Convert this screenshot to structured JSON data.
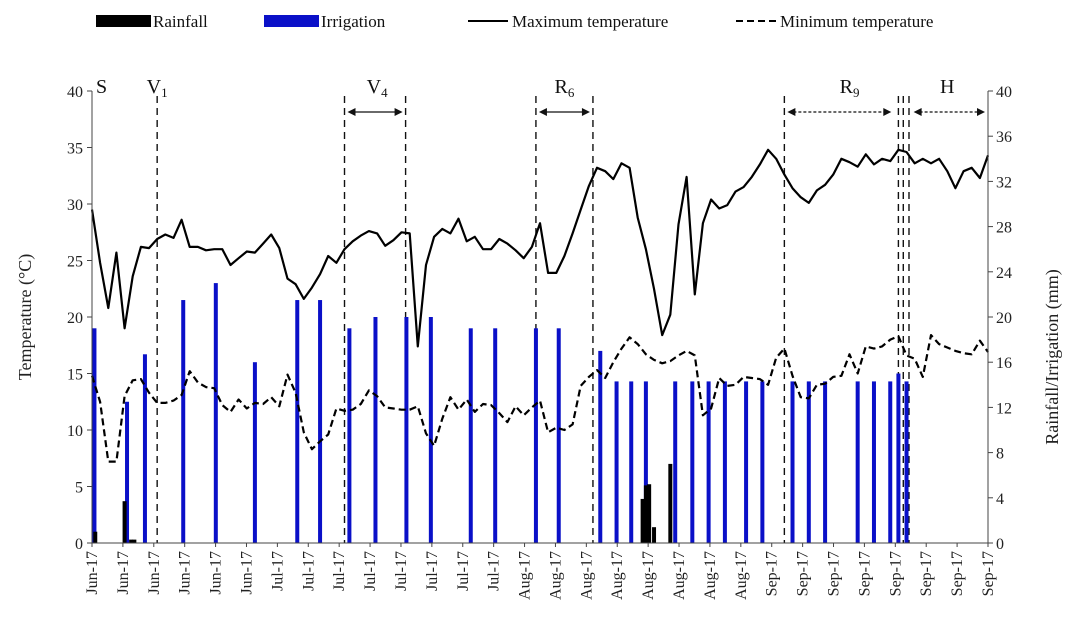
{
  "chart_data": {
    "type": "bar+line",
    "legend": {
      "position": "top",
      "entries": [
        {
          "label": "Rainfall",
          "kind": "bar",
          "color": "#000000"
        },
        {
          "label": "Irrigation",
          "kind": "bar",
          "color": "#0a10c8"
        },
        {
          "label": "Maximum temperature",
          "kind": "line",
          "style": "solid",
          "color": "#000000"
        },
        {
          "label": "Minimum temperature",
          "kind": "line",
          "style": "dashed",
          "color": "#000000"
        }
      ]
    },
    "y_left": {
      "label": "Temperature (°C)",
      "min": 0,
      "max": 40,
      "ticks": [
        "0",
        "5",
        "10",
        "15",
        "20",
        "25",
        "30",
        "35",
        "40"
      ]
    },
    "y_right": {
      "label": "Rainfall/Irrigation (mm)",
      "min": 0,
      "max": 40,
      "ticks": [
        "0",
        "4",
        "8",
        "12",
        "16",
        "20",
        "24",
        "28",
        "32",
        "36",
        "40"
      ]
    },
    "x_axis": {
      "min": 0,
      "max": 110,
      "tick_labels": [
        "Jun-17",
        "Jun-17",
        "Jun-17",
        "Jun-17",
        "Jun-17",
        "Jun-17",
        "Jul-17",
        "Jul-17",
        "Jul-17",
        "Jul-17",
        "Jul-17",
        "Jul-17",
        "Jul-17",
        "Jul-17",
        "Aug-17",
        "Aug-17",
        "Aug-17",
        "Aug-17",
        "Aug-17",
        "Aug-17",
        "Aug-17",
        "Aug-17",
        "Sep-17",
        "Sep-17",
        "Sep-17",
        "Sep-17",
        "Sep-17",
        "Sep-17",
        "Sep-17",
        "Sep-17"
      ]
    },
    "stages": [
      {
        "label": "S",
        "sub": "",
        "x": 0,
        "lines": [],
        "arrow": null
      },
      {
        "label": "V",
        "sub": "1",
        "x": 8,
        "lines": [
          8
        ],
        "arrow": null
      },
      {
        "label": "V",
        "sub": "4",
        "x": 35,
        "lines": [
          31,
          38.5
        ],
        "arrow": [
          31,
          38.5
        ]
      },
      {
        "label": "R",
        "sub": "6",
        "x": 58,
        "lines": [
          54.5,
          61.5
        ],
        "arrow": [
          54.5,
          61.5
        ]
      },
      {
        "label": "R",
        "sub": "9",
        "x": 93,
        "lines": [
          85,
          99
        ],
        "arrow": [
          85,
          98.5
        ]
      },
      {
        "label": "H",
        "sub": "",
        "x": 105,
        "lines": [
          99.6,
          100.3
        ],
        "arrow": [
          100.5,
          110
        ]
      }
    ],
    "rainfall": [
      {
        "x": 0.4,
        "mm": 1.0
      },
      {
        "x": 4.0,
        "mm": 3.7
      },
      {
        "x": 4.8,
        "mm": 0.3
      },
      {
        "x": 5.2,
        "mm": 0.3
      },
      {
        "x": 67.6,
        "mm": 3.9
      },
      {
        "x": 68.0,
        "mm": 5.1
      },
      {
        "x": 68.4,
        "mm": 5.2
      },
      {
        "x": 69.0,
        "mm": 1.4
      },
      {
        "x": 71.0,
        "mm": 7.0
      }
    ],
    "irrigation": [
      {
        "x": 0.3,
        "mm": 19
      },
      {
        "x": 4.3,
        "mm": 12.5
      },
      {
        "x": 6.5,
        "mm": 16.7
      },
      {
        "x": 11.2,
        "mm": 21.5
      },
      {
        "x": 15.2,
        "mm": 23
      },
      {
        "x": 20.0,
        "mm": 16
      },
      {
        "x": 25.2,
        "mm": 21.5
      },
      {
        "x": 28.0,
        "mm": 21.5
      },
      {
        "x": 31.6,
        "mm": 19
      },
      {
        "x": 34.8,
        "mm": 20
      },
      {
        "x": 38.6,
        "mm": 20
      },
      {
        "x": 41.6,
        "mm": 20
      },
      {
        "x": 46.5,
        "mm": 19
      },
      {
        "x": 49.5,
        "mm": 19
      },
      {
        "x": 54.5,
        "mm": 19
      },
      {
        "x": 57.3,
        "mm": 19
      },
      {
        "x": 62.4,
        "mm": 17
      },
      {
        "x": 64.4,
        "mm": 14.3
      },
      {
        "x": 66.2,
        "mm": 14.3
      },
      {
        "x": 68.0,
        "mm": 14.3
      },
      {
        "x": 71.6,
        "mm": 14.3
      },
      {
        "x": 73.7,
        "mm": 14.3
      },
      {
        "x": 75.7,
        "mm": 14.3
      },
      {
        "x": 77.7,
        "mm": 14.3
      },
      {
        "x": 80.3,
        "mm": 14.3
      },
      {
        "x": 82.3,
        "mm": 14.3
      },
      {
        "x": 86.0,
        "mm": 14.3
      },
      {
        "x": 88.0,
        "mm": 14.3
      },
      {
        "x": 90.0,
        "mm": 14.3
      },
      {
        "x": 94.0,
        "mm": 14.3
      },
      {
        "x": 96.0,
        "mm": 14.3
      },
      {
        "x": 98.0,
        "mm": 14.3
      },
      {
        "x": 99.0,
        "mm": 15.0
      },
      {
        "x": 100.0,
        "mm": 14.3
      }
    ],
    "max_temperature": [
      [
        0,
        29.5
      ],
      [
        1,
        24.8
      ],
      [
        2,
        20.8
      ],
      [
        3,
        25.7
      ],
      [
        4,
        19.0
      ],
      [
        5,
        23.6
      ],
      [
        6,
        26.2
      ],
      [
        7,
        26.1
      ],
      [
        8,
        26.9
      ],
      [
        9,
        27.3
      ],
      [
        10,
        27.0
      ],
      [
        11,
        28.6
      ],
      [
        12,
        26.2
      ],
      [
        13,
        26.2
      ],
      [
        14,
        25.9
      ],
      [
        15,
        26.0
      ],
      [
        16,
        26.0
      ],
      [
        17,
        24.6
      ],
      [
        18,
        25.2
      ],
      [
        19,
        25.8
      ],
      [
        20,
        25.7
      ],
      [
        21,
        26.5
      ],
      [
        22,
        27.3
      ],
      [
        23,
        26.1
      ],
      [
        24,
        23.4
      ],
      [
        25,
        22.9
      ],
      [
        26,
        21.6
      ],
      [
        27,
        22.6
      ],
      [
        28,
        23.8
      ],
      [
        29,
        25.4
      ],
      [
        30,
        24.8
      ],
      [
        31,
        26.0
      ],
      [
        32,
        26.7
      ],
      [
        33,
        27.2
      ],
      [
        34,
        27.6
      ],
      [
        35,
        27.4
      ],
      [
        36,
        26.3
      ],
      [
        37,
        26.8
      ],
      [
        38,
        27.5
      ],
      [
        39,
        27.4
      ],
      [
        40,
        17.4
      ],
      [
        41,
        24.6
      ],
      [
        42,
        27.1
      ],
      [
        43,
        27.8
      ],
      [
        44,
        27.4
      ],
      [
        45,
        28.7
      ],
      [
        46,
        26.7
      ],
      [
        47,
        27.1
      ],
      [
        48,
        26.0
      ],
      [
        49,
        26.0
      ],
      [
        50,
        26.9
      ],
      [
        51,
        26.5
      ],
      [
        52,
        25.9
      ],
      [
        53,
        25.2
      ],
      [
        54,
        26.2
      ],
      [
        55,
        28.3
      ],
      [
        56,
        23.9
      ],
      [
        57,
        23.9
      ],
      [
        58,
        25.4
      ],
      [
        59,
        27.4
      ],
      [
        60,
        29.5
      ],
      [
        61,
        31.6
      ],
      [
        62,
        33.2
      ],
      [
        63,
        32.9
      ],
      [
        64,
        32.2
      ],
      [
        65,
        33.6
      ],
      [
        66,
        33.2
      ],
      [
        67,
        28.8
      ],
      [
        68,
        26.0
      ],
      [
        69,
        22.5
      ],
      [
        70,
        18.4
      ],
      [
        71,
        20.2
      ],
      [
        72,
        28.2
      ],
      [
        73,
        32.4
      ],
      [
        74,
        22.0
      ],
      [
        75,
        28.3
      ],
      [
        76,
        30.4
      ],
      [
        77,
        29.6
      ],
      [
        78,
        29.9
      ],
      [
        79,
        31.1
      ],
      [
        80,
        31.5
      ],
      [
        81,
        32.4
      ],
      [
        82,
        33.5
      ],
      [
        83,
        34.8
      ],
      [
        84,
        34.0
      ],
      [
        85,
        32.6
      ],
      [
        86,
        31.4
      ],
      [
        87,
        30.6
      ],
      [
        88,
        30.1
      ],
      [
        89,
        31.2
      ],
      [
        90,
        31.7
      ],
      [
        91,
        32.6
      ],
      [
        92,
        34.0
      ],
      [
        93,
        33.7
      ],
      [
        94,
        33.3
      ],
      [
        95,
        34.4
      ],
      [
        96,
        33.5
      ],
      [
        97,
        34.0
      ],
      [
        98,
        33.8
      ],
      [
        99,
        34.8
      ],
      [
        100,
        34.6
      ],
      [
        101,
        33.6
      ],
      [
        102,
        34.0
      ],
      [
        103,
        33.6
      ],
      [
        104,
        34.0
      ],
      [
        105,
        32.9
      ],
      [
        106,
        31.4
      ],
      [
        107,
        32.9
      ],
      [
        108,
        33.2
      ],
      [
        109,
        32.3
      ],
      [
        110,
        34.3
      ]
    ],
    "min_temperature": [
      [
        0,
        14.8
      ],
      [
        1,
        12.5
      ],
      [
        2,
        7.2
      ],
      [
        3,
        7.2
      ],
      [
        4,
        13.0
      ],
      [
        5,
        14.4
      ],
      [
        6,
        14.5
      ],
      [
        7,
        13.3
      ],
      [
        8,
        12.4
      ],
      [
        9,
        12.4
      ],
      [
        10,
        12.6
      ],
      [
        11,
        13.1
      ],
      [
        12,
        15.2
      ],
      [
        13,
        14.2
      ],
      [
        14,
        13.8
      ],
      [
        15,
        13.7
      ],
      [
        16,
        12.2
      ],
      [
        17,
        11.6
      ],
      [
        18,
        12.7
      ],
      [
        19,
        11.9
      ],
      [
        20,
        12.4
      ],
      [
        21,
        12.3
      ],
      [
        22,
        12.9
      ],
      [
        23,
        12.1
      ],
      [
        24,
        14.9
      ],
      [
        25,
        13.3
      ],
      [
        26,
        9.8
      ],
      [
        27,
        8.3
      ],
      [
        28,
        9.0
      ],
      [
        29,
        9.6
      ],
      [
        30,
        11.9
      ],
      [
        31,
        11.7
      ],
      [
        32,
        11.8
      ],
      [
        33,
        12.3
      ],
      [
        34,
        13.5
      ],
      [
        35,
        13.0
      ],
      [
        36,
        12.0
      ],
      [
        37,
        11.9
      ],
      [
        38,
        11.8
      ],
      [
        39,
        11.8
      ],
      [
        40,
        12.1
      ],
      [
        41,
        9.7
      ],
      [
        42,
        8.6
      ],
      [
        43,
        11.0
      ],
      [
        44,
        12.9
      ],
      [
        45,
        11.8
      ],
      [
        46,
        12.7
      ],
      [
        47,
        11.6
      ],
      [
        48,
        12.3
      ],
      [
        49,
        12.2
      ],
      [
        50,
        11.5
      ],
      [
        51,
        10.7
      ],
      [
        52,
        12.1
      ],
      [
        53,
        11.3
      ],
      [
        54,
        12.0
      ],
      [
        55,
        12.6
      ],
      [
        56,
        9.8
      ],
      [
        57,
        10.2
      ],
      [
        58,
        10.0
      ],
      [
        59,
        10.5
      ],
      [
        60,
        13.9
      ],
      [
        61,
        14.7
      ],
      [
        62,
        15.3
      ],
      [
        63,
        14.6
      ],
      [
        64,
        16.0
      ],
      [
        65,
        17.2
      ],
      [
        66,
        18.2
      ],
      [
        67,
        17.6
      ],
      [
        68,
        16.7
      ],
      [
        69,
        16.2
      ],
      [
        70,
        15.9
      ],
      [
        71,
        16.1
      ],
      [
        72,
        16.6
      ],
      [
        73,
        17.0
      ],
      [
        74,
        16.6
      ],
      [
        75,
        11.3
      ],
      [
        76,
        11.9
      ],
      [
        77,
        14.6
      ],
      [
        78,
        13.9
      ],
      [
        79,
        14.0
      ],
      [
        80,
        14.7
      ],
      [
        81,
        14.6
      ],
      [
        82,
        14.5
      ],
      [
        83,
        14.0
      ],
      [
        84,
        16.4
      ],
      [
        85,
        17.2
      ],
      [
        86,
        14.8
      ],
      [
        87,
        12.9
      ],
      [
        88,
        12.8
      ],
      [
        89,
        14.0
      ],
      [
        90,
        14.1
      ],
      [
        91,
        14.7
      ],
      [
        92,
        14.8
      ],
      [
        93,
        16.7
      ],
      [
        94,
        15.0
      ],
      [
        95,
        17.4
      ],
      [
        96,
        17.2
      ],
      [
        97,
        17.4
      ],
      [
        98,
        18.0
      ],
      [
        99,
        18.3
      ],
      [
        100,
        16.6
      ],
      [
        101,
        16.3
      ],
      [
        102,
        14.7
      ],
      [
        103,
        18.4
      ],
      [
        104,
        17.6
      ],
      [
        105,
        17.3
      ],
      [
        106,
        17.0
      ],
      [
        107,
        16.8
      ],
      [
        108,
        16.7
      ],
      [
        109,
        17.9
      ],
      [
        110,
        16.9
      ]
    ]
  }
}
